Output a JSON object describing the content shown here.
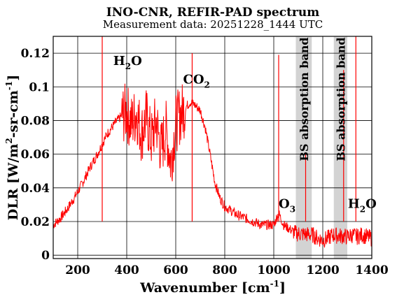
{
  "chart_data": {
    "type": "line",
    "title": "INO-CNR, REFIR-PAD spectrum",
    "subtitle": "Measurement data: 20251228_1444 UTC",
    "xlabel": {
      "main": "Wavenumber [cm",
      "sup": "-1",
      "end": "]"
    },
    "ylabel": {
      "p1": "DLR [W/m",
      "sup1": "2",
      "p2": "-sr-cm",
      "sup2": "-1",
      "p3": "]"
    },
    "xlim": [
      100,
      1400
    ],
    "ylim": [
      -0.002,
      0.13
    ],
    "xticks": [
      200,
      400,
      600,
      800,
      1000,
      1200,
      1400
    ],
    "xtick_labels": [
      "200",
      "400",
      "600",
      "800",
      "1000",
      "1200",
      "1400"
    ],
    "yticks": [
      0,
      0.02,
      0.04,
      0.06,
      0.08,
      0.1,
      0.12
    ],
    "ytick_labels": [
      "0",
      "0.02",
      "0.04",
      "0.06",
      "0.08",
      "0.1",
      "0.12"
    ],
    "grid": true,
    "line_color": "#ff0000",
    "band_color": "#d3d3d3",
    "absorption_bands": [
      {
        "label": "BS absorption band",
        "x0": 1090,
        "x1": 1155
      },
      {
        "label": "BS absorption band",
        "x0": 1245,
        "x1": 1300
      }
    ],
    "annotations": [
      {
        "base": "H",
        "sub": "2",
        "end": "O",
        "x": 345,
        "y": 0.113
      },
      {
        "base": "CO",
        "sub": "2",
        "end": "",
        "x": 630,
        "y": 0.102
      },
      {
        "base": "O",
        "sub": "3",
        "end": "",
        "x": 1020,
        "y": 0.028
      },
      {
        "base": "H",
        "sub": "2",
        "end": "O",
        "x": 1302,
        "y": 0.028
      }
    ],
    "series": [
      {
        "x": [
          100,
          130,
          160,
          190,
          220,
          250,
          280,
          300,
          320,
          350,
          380,
          400,
          420,
          440,
          460,
          480,
          500,
          520,
          540,
          560,
          580,
          600,
          620,
          640,
          660,
          680,
          700,
          720,
          740,
          760,
          780,
          800,
          850,
          900,
          950,
          1000,
          1020,
          1040,
          1060,
          1080,
          1090,
          1160,
          1180,
          1200,
          1220,
          1240,
          1300,
          1320,
          1340,
          1360,
          1380,
          1400
        ],
        "values": [
          0.018,
          0.022,
          0.028,
          0.035,
          0.043,
          0.052,
          0.06,
          0.066,
          0.072,
          0.078,
          0.083,
          0.085,
          0.078,
          0.085,
          0.072,
          0.082,
          0.068,
          0.08,
          0.062,
          0.075,
          0.055,
          0.078,
          0.084,
          0.088,
          0.091,
          0.089,
          0.086,
          0.076,
          0.06,
          0.043,
          0.034,
          0.029,
          0.024,
          0.021,
          0.018,
          0.018,
          0.025,
          0.018,
          0.016,
          0.014,
          0.013,
          0.012,
          0.01,
          0.009,
          0.01,
          0.012,
          0.011,
          0.012,
          0.011,
          0.012,
          0.011,
          0.01
        ]
      }
    ],
    "spikes": [
      {
        "x": 300,
        "y": 0.13
      },
      {
        "x": 667,
        "y": 0.12
      },
      {
        "x": 1020,
        "y": 0.119
      },
      {
        "x": 1130,
        "y": 0.06
      },
      {
        "x": 1285,
        "y": 0.11
      },
      {
        "x": 1335,
        "y": 0.13
      }
    ]
  }
}
